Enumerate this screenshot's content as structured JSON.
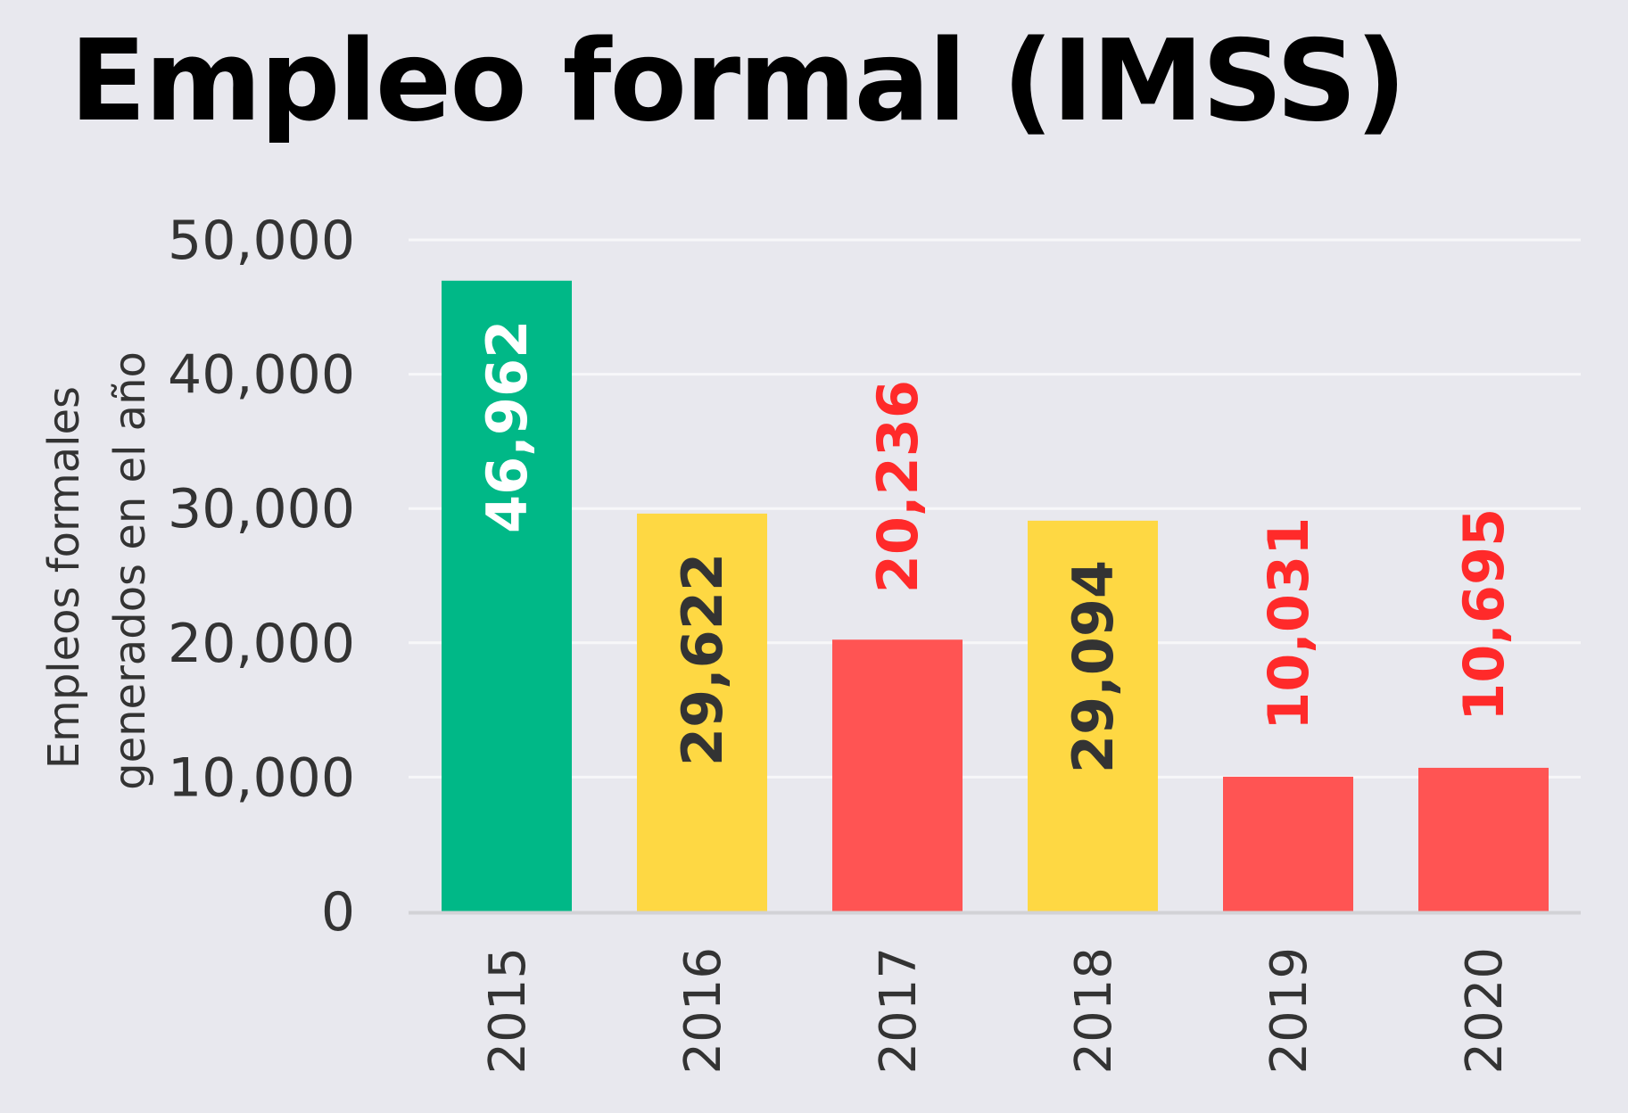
{
  "title": "Empleo formal (IMSS)",
  "chart_data": {
    "type": "bar",
    "title": "Empleo formal (IMSS)",
    "ylabel_lines": [
      "Empleos formales",
      "generados en el año"
    ],
    "xlabel": "",
    "categories": [
      "2015",
      "2016",
      "2017",
      "2018",
      "2019",
      "2020"
    ],
    "values": [
      46962,
      29622,
      20236,
      29094,
      10031,
      10695
    ],
    "value_labels": [
      "46,962",
      "29,622",
      "20,236",
      "29,094",
      "10,031",
      "10,695"
    ],
    "bar_colors": [
      "#00b887",
      "#fed843",
      "#ff5453",
      "#fed843",
      "#ff5453",
      "#ff5453"
    ],
    "label_colors": [
      "#ffffff",
      "#333333",
      "#ff2a2a",
      "#333333",
      "#ff2a2a",
      "#ff2a2a"
    ],
    "label_inside": [
      true,
      true,
      false,
      true,
      false,
      false
    ],
    "yticks": [
      0,
      10000,
      20000,
      30000,
      40000,
      50000
    ],
    "ytick_labels": [
      "0",
      "10,000",
      "20,000",
      "30,000",
      "40,000",
      "50,000"
    ],
    "ylim": [
      0,
      50000
    ],
    "grid": true,
    "legend": "none"
  }
}
